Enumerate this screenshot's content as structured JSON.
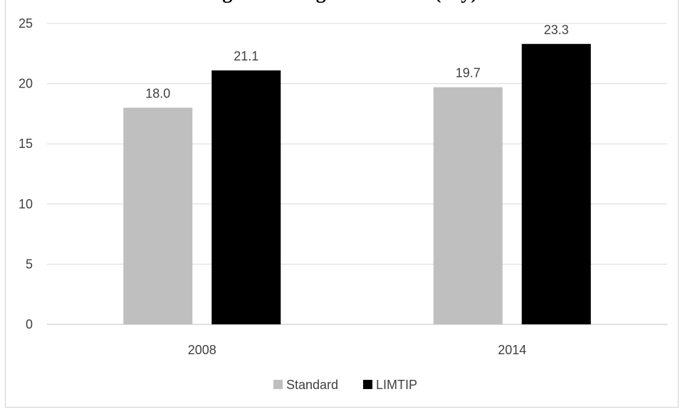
{
  "chart_data": {
    "type": "bar",
    "title": "…ge … … …ge … … …… (…y)",
    "categories": [
      "2008",
      "2014"
    ],
    "series": [
      {
        "name": "Standard",
        "values": [
          18.0,
          19.7
        ],
        "color": "#bfbfbf"
      },
      {
        "name": "LIMTIP",
        "values": [
          21.1,
          23.3
        ],
        "color": "#000000"
      }
    ],
    "data_labels": [
      [
        "18.0",
        "19.7"
      ],
      [
        "21.1",
        "23.3"
      ]
    ],
    "ylim": [
      0,
      25
    ],
    "yticks": [
      0,
      5,
      10,
      15,
      20,
      25
    ],
    "grid": true,
    "legend": "bottom",
    "xlabel": "",
    "ylabel": ""
  }
}
